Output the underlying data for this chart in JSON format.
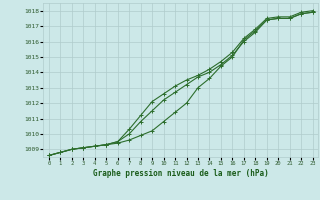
{
  "title": "Graphe pression niveau de la mer (hPa)",
  "x_hours": [
    0,
    1,
    2,
    3,
    4,
    5,
    6,
    7,
    8,
    9,
    10,
    11,
    12,
    13,
    14,
    15,
    16,
    17,
    18,
    19,
    20,
    21,
    22,
    23
  ],
  "line_a": [
    1008.6,
    1008.8,
    1009.0,
    1009.1,
    1009.2,
    1009.3,
    1009.5,
    1010.0,
    1010.8,
    1011.5,
    1012.2,
    1012.7,
    1013.2,
    1013.7,
    1014.0,
    1014.5,
    1015.1,
    1016.0,
    1016.6,
    1017.4,
    1017.5,
    1017.5,
    1017.8,
    1017.9
  ],
  "line_b": [
    1008.6,
    1008.8,
    1009.0,
    1009.1,
    1009.2,
    1009.3,
    1009.4,
    1009.6,
    1009.9,
    1010.2,
    1010.8,
    1011.4,
    1012.0,
    1013.0,
    1013.6,
    1014.4,
    1015.0,
    1016.1,
    1016.7,
    1017.4,
    1017.5,
    1017.5,
    1017.8,
    1017.9
  ],
  "line_c": [
    1008.6,
    1008.8,
    1009.0,
    1009.1,
    1009.2,
    1009.3,
    1009.5,
    1010.3,
    1011.2,
    1012.1,
    1012.6,
    1013.1,
    1013.5,
    1013.8,
    1014.2,
    1014.7,
    1015.3,
    1016.2,
    1016.8,
    1017.5,
    1017.6,
    1017.6,
    1017.9,
    1018.0
  ],
  "ylim": [
    1008.5,
    1018.5
  ],
  "yticks": [
    1009,
    1010,
    1011,
    1012,
    1013,
    1014,
    1015,
    1016,
    1017,
    1018
  ],
  "line_color": "#2d6e2d",
  "bg_color": "#cce8e8",
  "grid_color": "#b0cccc",
  "axis_label_color": "#2d5a2d",
  "title_color": "#1a5c1a"
}
